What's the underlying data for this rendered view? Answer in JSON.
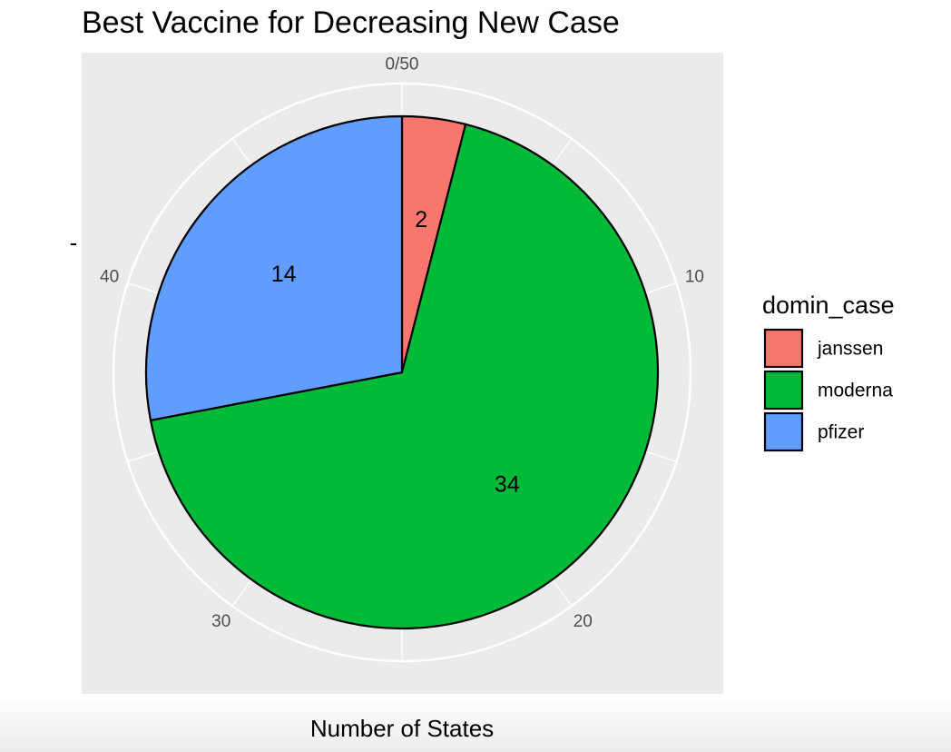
{
  "chart_data": {
    "type": "pie",
    "title": "Best Vaccine for Decreasing New Case",
    "xlabel": "Number of States",
    "ylabel": "-",
    "total": 50,
    "categories": [
      "janssen",
      "moderna",
      "pfizer"
    ],
    "values": [
      2,
      34,
      14
    ],
    "colors": [
      "#F8766D",
      "#00BA38",
      "#619CFF"
    ],
    "tick_labels": [
      {
        "value": 0,
        "label": "0/50"
      },
      {
        "value": 10,
        "label": "10"
      },
      {
        "value": 20,
        "label": "20"
      },
      {
        "value": 30,
        "label": "30"
      },
      {
        "value": 40,
        "label": "40"
      }
    ],
    "legend": {
      "title": "domin_case",
      "position": "right",
      "entries": [
        "janssen",
        "moderna",
        "pfizer"
      ]
    },
    "panel_background": "#EBEBEB",
    "gridline_color": "#FFFFFF",
    "slice_border_color": "#000000"
  }
}
